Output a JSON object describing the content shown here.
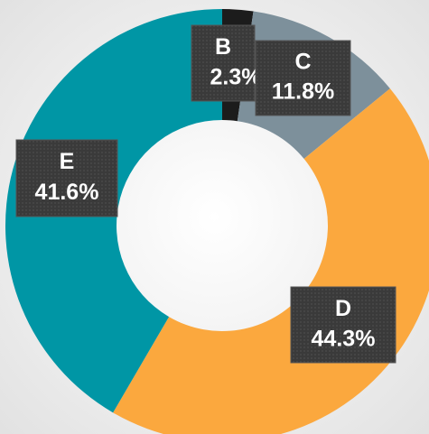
{
  "chart_data": {
    "type": "pie",
    "categories": [
      "B",
      "C",
      "D",
      "E"
    ],
    "values": [
      2.3,
      11.8,
      44.3,
      41.6
    ],
    "value_labels": [
      "2.3%",
      "11.8%",
      "44.3%",
      "41.6%"
    ],
    "colors": [
      "#1c1c1c",
      "#7d909b",
      "#fba83e",
      "#0096a5"
    ],
    "donut": true
  }
}
